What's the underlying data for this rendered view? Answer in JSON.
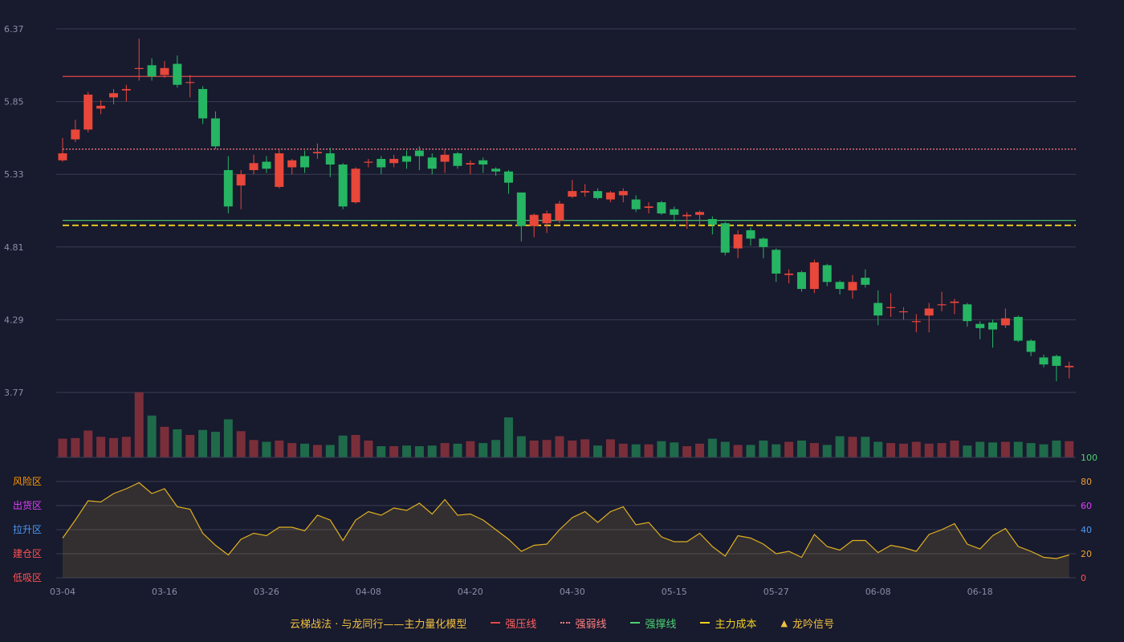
{
  "chart_data": {
    "type": "candlestick",
    "title": "",
    "price_axis": {
      "ticks": [
        "6.37",
        "5.85",
        "5.33",
        "4.81",
        "4.29",
        "3.77"
      ],
      "ylim": [
        3.77,
        6.37
      ]
    },
    "x_ticks": [
      {
        "label": "03-04",
        "index": 0
      },
      {
        "label": "03-16",
        "index": 8
      },
      {
        "label": "03-26",
        "index": 16
      },
      {
        "label": "04-08",
        "index": 24
      },
      {
        "label": "04-20",
        "index": 32
      },
      {
        "label": "04-30",
        "index": 40
      },
      {
        "label": "05-15",
        "index": 48
      },
      {
        "label": "05-27",
        "index": 56
      },
      {
        "label": "06-08",
        "index": 64
      },
      {
        "label": "06-18",
        "index": 72
      }
    ],
    "horizontal_lines": [
      {
        "name": "强压线",
        "value": 6.03,
        "color": "#e04848",
        "style": "solid"
      },
      {
        "name": "强弱线",
        "value": 5.51,
        "color": "#ff8080",
        "style": "dotted"
      },
      {
        "name": "强撑线",
        "value": 5.0,
        "color": "#4cd070",
        "style": "solid"
      },
      {
        "name": "主力成本",
        "value": 4.965,
        "color": "#f0d020",
        "style": "dashed"
      }
    ],
    "candles": [
      [
        5.43,
        5.48,
        5.59,
        5.42
      ],
      [
        5.58,
        5.65,
        5.72,
        5.56
      ],
      [
        5.65,
        5.9,
        5.92,
        5.63
      ],
      [
        5.8,
        5.82,
        5.86,
        5.76
      ],
      [
        5.88,
        5.91,
        5.94,
        5.83
      ],
      [
        5.93,
        5.94,
        5.97,
        5.85
      ],
      [
        6.09,
        6.09,
        6.3,
        6.0
      ],
      [
        6.11,
        6.03,
        6.16,
        6.0
      ],
      [
        6.04,
        6.09,
        6.14,
        6.02
      ],
      [
        6.12,
        5.97,
        6.18,
        5.95
      ],
      [
        5.99,
        5.99,
        6.04,
        5.88
      ],
      [
        5.94,
        5.73,
        5.96,
        5.69
      ],
      [
        5.73,
        5.53,
        5.78,
        5.51
      ],
      [
        5.36,
        5.1,
        5.46,
        5.05
      ],
      [
        5.25,
        5.33,
        5.36,
        5.08
      ],
      [
        5.36,
        5.41,
        5.47,
        5.33
      ],
      [
        5.42,
        5.37,
        5.46,
        5.34
      ],
      [
        5.24,
        5.48,
        5.51,
        5.23
      ],
      [
        5.38,
        5.43,
        5.44,
        5.33
      ],
      [
        5.46,
        5.38,
        5.5,
        5.34
      ],
      [
        5.48,
        5.49,
        5.55,
        5.44
      ],
      [
        5.48,
        5.4,
        5.52,
        5.31
      ],
      [
        5.4,
        5.1,
        5.41,
        5.08
      ],
      [
        5.13,
        5.37,
        5.38,
        5.12
      ],
      [
        5.42,
        5.42,
        5.44,
        5.38
      ],
      [
        5.44,
        5.38,
        5.46,
        5.33
      ],
      [
        5.41,
        5.44,
        5.47,
        5.38
      ],
      [
        5.46,
        5.42,
        5.5,
        5.37
      ],
      [
        5.5,
        5.46,
        5.53,
        5.36
      ],
      [
        5.45,
        5.37,
        5.48,
        5.33
      ],
      [
        5.42,
        5.47,
        5.51,
        5.34
      ],
      [
        5.48,
        5.39,
        5.49,
        5.37
      ],
      [
        5.4,
        5.41,
        5.43,
        5.33
      ],
      [
        5.43,
        5.4,
        5.45,
        5.34
      ],
      [
        5.37,
        5.35,
        5.38,
        5.32
      ],
      [
        5.35,
        5.27,
        5.36,
        5.19
      ],
      [
        5.2,
        4.96,
        5.2,
        4.85
      ],
      [
        4.96,
        5.04,
        5.05,
        4.88
      ],
      [
        4.98,
        5.05,
        5.07,
        4.91
      ],
      [
        5.0,
        5.12,
        5.14,
        4.98
      ],
      [
        5.17,
        5.21,
        5.29,
        5.16
      ],
      [
        5.2,
        5.21,
        5.26,
        5.17
      ],
      [
        5.21,
        5.16,
        5.23,
        5.15
      ],
      [
        5.15,
        5.2,
        5.21,
        5.13
      ],
      [
        5.18,
        5.21,
        5.23,
        5.13
      ],
      [
        5.15,
        5.08,
        5.18,
        5.06
      ],
      [
        5.09,
        5.1,
        5.13,
        5.05
      ],
      [
        5.13,
        5.05,
        5.14,
        5.04
      ],
      [
        5.08,
        5.04,
        5.1,
        4.99
      ],
      [
        5.03,
        5.04,
        5.06,
        4.94
      ],
      [
        5.04,
        5.06,
        5.07,
        4.96
      ],
      [
        5.01,
        4.97,
        5.03,
        4.9
      ],
      [
        4.98,
        4.77,
        4.99,
        4.75
      ],
      [
        4.8,
        4.9,
        4.93,
        4.73
      ],
      [
        4.93,
        4.87,
        4.95,
        4.82
      ],
      [
        4.87,
        4.81,
        4.88,
        4.73
      ],
      [
        4.79,
        4.62,
        4.8,
        4.56
      ],
      [
        4.61,
        4.62,
        4.65,
        4.55
      ],
      [
        4.63,
        4.51,
        4.64,
        4.49
      ],
      [
        4.51,
        4.7,
        4.72,
        4.48
      ],
      [
        4.68,
        4.56,
        4.69,
        4.53
      ],
      [
        4.56,
        4.51,
        4.57,
        4.47
      ],
      [
        4.5,
        4.56,
        4.61,
        4.44
      ],
      [
        4.59,
        4.54,
        4.65,
        4.52
      ],
      [
        4.41,
        4.32,
        4.5,
        4.25
      ],
      [
        4.38,
        4.38,
        4.48,
        4.31
      ],
      [
        4.35,
        4.35,
        4.38,
        4.29
      ],
      [
        4.28,
        4.28,
        4.33,
        4.2
      ],
      [
        4.32,
        4.37,
        4.41,
        4.2
      ],
      [
        4.4,
        4.4,
        4.49,
        4.35
      ],
      [
        4.41,
        4.42,
        4.44,
        4.33
      ],
      [
        4.4,
        4.28,
        4.41,
        4.24
      ],
      [
        4.26,
        4.23,
        4.28,
        4.15
      ],
      [
        4.27,
        4.22,
        4.29,
        4.09
      ],
      [
        4.25,
        4.3,
        4.37,
        4.23
      ],
      [
        4.31,
        4.14,
        4.32,
        4.13
      ],
      [
        4.14,
        4.06,
        4.15,
        4.03
      ],
      [
        4.02,
        3.97,
        4.04,
        3.95
      ],
      [
        4.03,
        3.96,
        4.04,
        3.85
      ],
      [
        3.95,
        3.96,
        3.99,
        3.87
      ]
    ],
    "volume": [
      30,
      31,
      43,
      33,
      31,
      33,
      104,
      67,
      49,
      45,
      36,
      44,
      41,
      61,
      42,
      28,
      25,
      27,
      23,
      22,
      20,
      20,
      35,
      36,
      27,
      18,
      18,
      19,
      18,
      19,
      23,
      22,
      26,
      23,
      28,
      64,
      34,
      27,
      28,
      34,
      27,
      29,
      19,
      29,
      22,
      21,
      21,
      26,
      24,
      18,
      22,
      30,
      25,
      20,
      20,
      27,
      21,
      25,
      27,
      23,
      20,
      34,
      33,
      33,
      25,
      23,
      22,
      25,
      22,
      23,
      27,
      19,
      25,
      24,
      25,
      25,
      23,
      21,
      27,
      26
    ],
    "volume_max_ratio": 1.0,
    "indicator": {
      "axis_ticks": [
        "100",
        "80",
        "60",
        "40",
        "20",
        "0"
      ],
      "zones": [
        "风险区",
        "出货区",
        "拉升区",
        "建仓区",
        "低吸区"
      ],
      "zone_colors": [
        "#ff9800",
        "#e040fb",
        "#4a9af5",
        "#ff5252",
        "#ff5252"
      ],
      "tick_colors": [
        "#4cd070",
        "#f0a030",
        "#e040fb",
        "#4a9af5",
        "#f0a030",
        "#ff5252"
      ],
      "values": [
        33,
        48,
        64,
        63,
        70,
        74,
        79,
        70,
        74,
        59,
        57,
        37,
        27,
        19,
        32,
        37,
        35,
        42,
        42,
        39,
        52,
        48,
        31,
        48,
        55,
        52,
        58,
        56,
        62,
        53,
        65,
        52,
        53,
        48,
        40,
        32,
        22,
        27,
        28,
        40,
        50,
        55,
        46,
        55,
        59,
        44,
        46,
        34,
        30,
        30,
        37,
        26,
        18,
        35,
        33,
        28,
        20,
        22,
        17,
        36,
        26,
        23,
        31,
        31,
        21,
        27,
        25,
        22,
        36,
        40,
        45,
        28,
        24,
        35,
        41,
        26,
        22,
        17,
        16,
        19
      ],
      "line_color": "#e0b020"
    },
    "legend": {
      "title": "云梯战法 · 与龙同行——主力量化模型",
      "items": [
        {
          "label": "强压线",
          "color": "#e04848",
          "style": "solid"
        },
        {
          "label": "强弱线",
          "color": "#ff8080",
          "style": "dotted"
        },
        {
          "label": "强撑线",
          "color": "#4cd070",
          "style": "solid"
        },
        {
          "label": "主力成本",
          "color": "#f0d020",
          "style": "dashed"
        },
        {
          "label": "龙吟信号",
          "color": "#f0c040",
          "style": "triangle"
        }
      ]
    },
    "colors": {
      "up": "#e8473a",
      "down": "#26b563",
      "up_vol": "#7a2e3a",
      "down_vol": "#1f6a4a",
      "grid": "#3a3d52",
      "axis_text": "#8a8fa8"
    }
  }
}
